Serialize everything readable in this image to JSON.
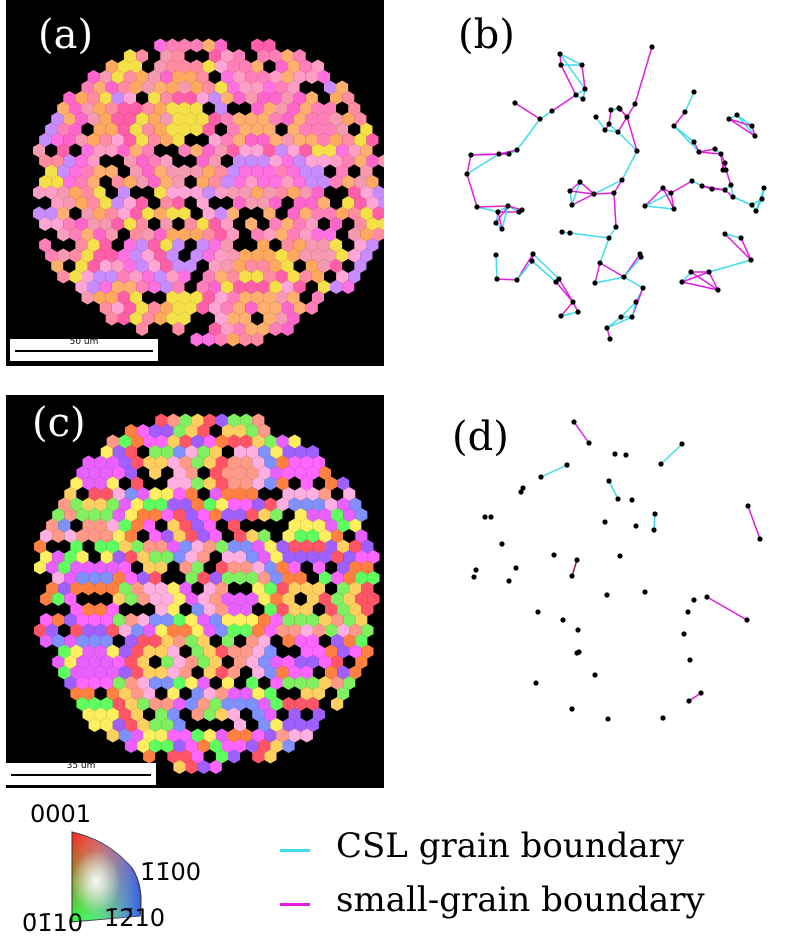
{
  "panels": {
    "a": {
      "label": "(a)",
      "scale": "50 um"
    },
    "b": {
      "label": "(b)"
    },
    "c": {
      "label": "(c)",
      "scale": "35 um"
    },
    "d": {
      "label": "(d)"
    }
  },
  "triangle": {
    "top": "0001",
    "right": "1̄1̄00",
    "left": "0̄1̄10",
    "bottom": "1̄2̄10"
  },
  "legend": {
    "csl": {
      "label": "CSL grain boundary",
      "color": "#3fdcec"
    },
    "small": {
      "label": "small-grain boundary",
      "color": "#e01ee0"
    }
  }
}
